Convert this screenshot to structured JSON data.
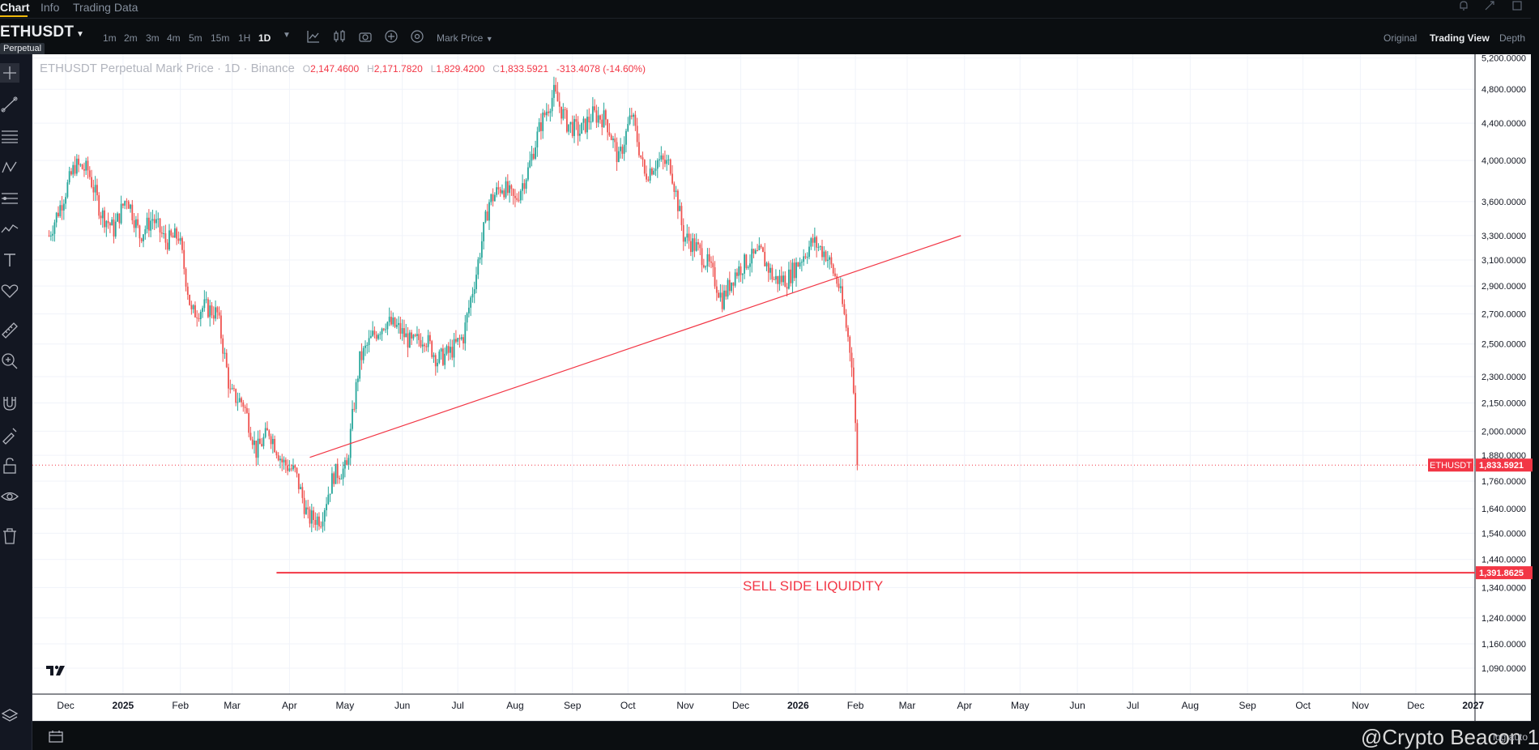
{
  "tabs": [
    {
      "label": "Chart",
      "active": true
    },
    {
      "label": "Info",
      "active": false
    },
    {
      "label": "Trading Data",
      "active": false
    }
  ],
  "symbol": "ETHUSDT",
  "contract_badge": "Perpetual",
  "timeframes": [
    {
      "label": "1m",
      "active": false
    },
    {
      "label": "2m",
      "active": false
    },
    {
      "label": "3m",
      "active": false
    },
    {
      "label": "4m",
      "active": false
    },
    {
      "label": "5m",
      "active": false
    },
    {
      "label": "15m",
      "active": false
    },
    {
      "label": "1H",
      "active": false
    },
    {
      "label": "1D",
      "active": true
    }
  ],
  "price_type": "Mark Price",
  "views": [
    {
      "label": "Original",
      "active": false
    },
    {
      "label": "Trading View",
      "active": true
    },
    {
      "label": "Depth",
      "active": false
    }
  ],
  "legend": {
    "title": "ETHUSDT Perpetual Mark Price · 1D · Binance",
    "o_label": "O",
    "o_value": "2,147.4600",
    "h_label": "H",
    "h_value": "2,171.7820",
    "l_label": "L",
    "l_value": "1,829.4200",
    "c_label": "C",
    "c_value": "1,833.5921",
    "change": "-313.4078 (-14.60%)"
  },
  "watermark": "@Crypto Beacon 1",
  "bottom_right": "log  auto",
  "colors": {
    "up": "#26a69a",
    "down": "#ef5350",
    "drawing": "#f23645",
    "background": "#ffffff",
    "axis_text": "#131722"
  },
  "chart_data": {
    "type": "candlestick",
    "title": "ETHUSDT Perpetual Mark Price · 1D · Binance",
    "scale": "log",
    "ylim": [
      1020,
      5250
    ],
    "x_tick_labels": [
      "Dec",
      "2025",
      "Feb",
      "Mar",
      "Apr",
      "May",
      "Jun",
      "Jul",
      "Aug",
      "Sep",
      "Oct",
      "Nov",
      "Dec",
      "2026",
      "Feb",
      "Mar",
      "Apr",
      "May",
      "Jun",
      "Jul",
      "Aug",
      "Sep",
      "Oct",
      "Nov",
      "Dec",
      "2027"
    ],
    "y_tick_labels": [
      "5,200.0000",
      "4,800.0000",
      "4,400.0000",
      "4,000.0000",
      "3,600.0000",
      "3,300.0000",
      "3,100.0000",
      "2,900.0000",
      "2,700.0000",
      "2,500.0000",
      "2,300.0000",
      "2,150.0000",
      "2,000.0000",
      "1,880.0000",
      "1,760.0000",
      "1,640.0000",
      "1,540.0000",
      "1,440.0000",
      "1,340.0000",
      "1,240.0000",
      "1,160.0000",
      "1,090.0000"
    ],
    "grid": true,
    "series": [
      {
        "name": "ETHUSDT",
        "note": "daily candles, approximate closes sampled weekly",
        "dates": [
          "2024-11-22",
          "2024-11-29",
          "2024-12-06",
          "2024-12-13",
          "2024-12-20",
          "2024-12-27",
          "2025-01-03",
          "2025-01-10",
          "2025-01-17",
          "2025-01-24",
          "2025-01-31",
          "2025-02-07",
          "2025-02-14",
          "2025-02-21",
          "2025-02-28",
          "2025-03-07",
          "2025-03-14",
          "2025-03-21",
          "2025-03-28",
          "2025-04-04",
          "2025-04-11",
          "2025-04-18",
          "2025-04-25",
          "2025-05-02",
          "2025-05-09",
          "2025-05-16",
          "2025-05-23",
          "2025-05-30",
          "2025-06-06",
          "2025-06-13",
          "2025-06-20",
          "2025-06-27",
          "2025-07-04",
          "2025-07-11",
          "2025-07-18",
          "2025-07-25",
          "2025-08-01",
          "2025-08-08",
          "2025-08-15",
          "2025-08-22",
          "2025-08-29",
          "2025-09-05",
          "2025-09-12",
          "2025-09-19",
          "2025-09-26",
          "2025-10-03",
          "2025-10-10",
          "2025-10-17",
          "2025-10-24",
          "2025-10-31",
          "2025-11-07",
          "2025-11-14",
          "2025-11-21",
          "2025-11-28",
          "2025-12-05",
          "2025-12-12",
          "2025-12-19",
          "2025-12-26",
          "2026-01-02",
          "2026-01-09",
          "2026-01-16",
          "2026-01-23",
          "2026-01-30",
          "2026-02-02"
        ],
        "close": [
          3300,
          3600,
          3950,
          3900,
          3500,
          3350,
          3650,
          3300,
          3450,
          3250,
          3300,
          2700,
          2750,
          2700,
          2200,
          2150,
          1900,
          2000,
          1850,
          1800,
          1600,
          1600,
          1790,
          1820,
          2400,
          2550,
          2650,
          2600,
          2500,
          2550,
          2400,
          2450,
          2550,
          3000,
          3600,
          3750,
          3600,
          3900,
          4400,
          4750,
          4400,
          4300,
          4500,
          4450,
          4000,
          4500,
          3850,
          4000,
          3950,
          3300,
          3200,
          3050,
          2800,
          3000,
          3100,
          3150,
          2950,
          2950,
          3100,
          3250,
          3150,
          2900,
          2400,
          1833.5921
        ]
      }
    ],
    "annotations": [
      {
        "type": "trendline",
        "label": "",
        "from": {
          "date": "2025-04-12",
          "price": 1870
        },
        "to": {
          "date": "2026-03-30",
          "price": 3300
        }
      },
      {
        "type": "horizontal_line",
        "label": "SELL SIDE LIQUIDITY",
        "price": 1391.8625,
        "price_label": "1,391.8625"
      },
      {
        "type": "price_line",
        "label": "ETHUSDT",
        "price": 1833.5921,
        "price_label": "1,833.5921"
      }
    ]
  }
}
